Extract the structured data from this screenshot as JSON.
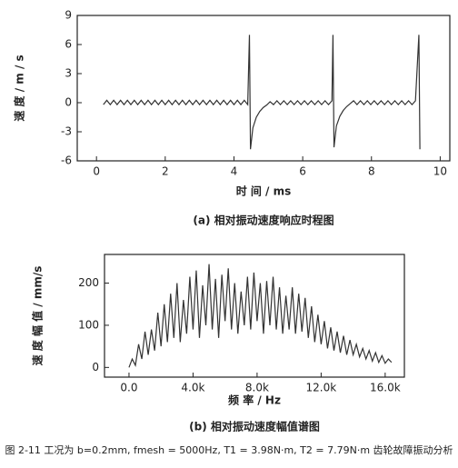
{
  "chart_data": [
    {
      "type": "line",
      "title": "(a) 相对振动速度响应时程图",
      "x_label": "时 间 / ms",
      "y_label": "速 度 / m / s",
      "color": "#333333",
      "xlim": [
        -0.56,
        10.28
      ],
      "xticks": [
        0,
        2,
        4,
        6,
        8,
        10
      ],
      "ylim": [
        -6,
        9
      ],
      "yticks": [
        -6,
        -3,
        0,
        3,
        6,
        9
      ],
      "x": [
        0.2,
        0.3,
        0.4,
        0.5,
        0.6,
        0.7,
        0.8,
        0.9,
        1.0,
        1.1,
        1.2,
        1.3,
        1.4,
        1.5,
        1.6,
        1.7,
        1.8,
        1.9,
        2.0,
        2.1,
        2.2,
        2.3,
        2.4,
        2.5,
        2.6,
        2.7,
        2.8,
        2.9,
        3.0,
        3.1,
        3.2,
        3.3,
        3.4,
        3.5,
        3.6,
        3.7,
        3.8,
        3.9,
        4.0,
        4.1,
        4.2,
        4.3,
        4.4,
        4.45,
        4.48,
        4.55,
        4.65,
        4.75,
        4.85,
        4.95,
        5.05,
        5.15,
        5.25,
        5.35,
        5.45,
        5.55,
        5.65,
        5.75,
        5.85,
        5.95,
        6.05,
        6.15,
        6.25,
        6.35,
        6.45,
        6.55,
        6.65,
        6.75,
        6.85,
        6.88,
        6.91,
        6.98,
        7.08,
        7.18,
        7.28,
        7.38,
        7.48,
        7.58,
        7.68,
        7.78,
        7.88,
        7.98,
        8.08,
        8.18,
        8.28,
        8.38,
        8.48,
        8.58,
        8.68,
        8.78,
        8.88,
        8.98,
        9.08,
        9.18,
        9.28,
        9.38,
        9.41
      ],
      "values": [
        -0.2,
        0.25,
        -0.2,
        0.25,
        -0.2,
        0.25,
        -0.2,
        0.25,
        -0.2,
        0.25,
        -0.2,
        0.25,
        -0.2,
        0.25,
        -0.2,
        0.25,
        -0.2,
        0.25,
        -0.2,
        0.25,
        -0.2,
        0.25,
        -0.2,
        0.25,
        -0.2,
        0.25,
        -0.2,
        0.25,
        -0.2,
        0.25,
        -0.2,
        0.25,
        -0.2,
        0.25,
        -0.2,
        0.25,
        -0.2,
        0.25,
        -0.2,
        0.25,
        -0.2,
        0.25,
        -0.2,
        7.0,
        -4.8,
        -2.6,
        -1.5,
        -0.9,
        -0.5,
        -0.25,
        0.1,
        -0.2,
        0.2,
        -0.2,
        0.2,
        -0.2,
        0.2,
        -0.2,
        0.2,
        -0.2,
        0.2,
        -0.2,
        0.2,
        -0.2,
        0.2,
        -0.2,
        0.2,
        -0.2,
        0.2,
        7.0,
        -4.6,
        -2.4,
        -1.4,
        -0.8,
        -0.4,
        -0.1,
        0.2,
        -0.2,
        0.2,
        -0.2,
        0.2,
        -0.2,
        0.2,
        -0.2,
        0.2,
        -0.2,
        0.2,
        -0.2,
        0.2,
        -0.2,
        0.2,
        -0.2,
        0.2,
        -0.2,
        0.2,
        7.0,
        -4.8
      ]
    },
    {
      "type": "line",
      "title": "(b) 相对振动速度幅值谱图",
      "x_label": "频 率 / Hz",
      "y_label": "速 度 幅 值 / mm/s",
      "color": "#333333",
      "xlim": [
        -1530,
        17200
      ],
      "xticks": [
        {
          "value": 0,
          "label": "0.0"
        },
        {
          "value": 4000,
          "label": "4.0k"
        },
        {
          "value": 8000,
          "label": "8.0k"
        },
        {
          "value": 12000,
          "label": "12.0k"
        },
        {
          "value": 16000,
          "label": "16.0k"
        }
      ],
      "ylim": [
        -23,
        268
      ],
      "yticks": [
        0,
        100,
        200
      ],
      "x": [
        0,
        200,
        400,
        600,
        800,
        1000,
        1200,
        1400,
        1600,
        1800,
        2000,
        2200,
        2400,
        2600,
        2800,
        3000,
        3200,
        3400,
        3600,
        3800,
        4000,
        4200,
        4400,
        4600,
        4800,
        5000,
        5200,
        5400,
        5600,
        5800,
        6000,
        6200,
        6400,
        6600,
        6800,
        7000,
        7200,
        7400,
        7600,
        7800,
        8000,
        8200,
        8400,
        8600,
        8800,
        9000,
        9200,
        9400,
        9600,
        9800,
        10000,
        10200,
        10400,
        10600,
        10800,
        11000,
        11200,
        11400,
        11600,
        11800,
        12000,
        12200,
        12400,
        12600,
        12800,
        13000,
        13200,
        13400,
        13600,
        13800,
        14000,
        14200,
        14400,
        14600,
        14800,
        15000,
        15200,
        15400,
        15600,
        15800,
        16000,
        16200,
        16400
      ],
      "values": [
        0,
        20,
        5,
        55,
        20,
        85,
        30,
        90,
        40,
        130,
        50,
        150,
        60,
        175,
        70,
        200,
        60,
        160,
        80,
        215,
        90,
        230,
        70,
        195,
        100,
        245,
        90,
        210,
        70,
        220,
        110,
        235,
        90,
        200,
        80,
        180,
        100,
        215,
        90,
        225,
        110,
        200,
        80,
        205,
        100,
        215,
        90,
        190,
        80,
        170,
        90,
        190,
        80,
        175,
        85,
        165,
        70,
        145,
        60,
        125,
        55,
        110,
        45,
        95,
        40,
        85,
        35,
        75,
        30,
        65,
        30,
        55,
        25,
        45,
        20,
        40,
        15,
        35,
        12,
        28,
        10,
        20,
        12
      ]
    }
  ],
  "caption": "图 2-11 工况为 b=0.2mm, fmesh = 5000Hz, T1 = 3.98N·m, T2 = 7.79N·m 齿轮故障振动分析"
}
